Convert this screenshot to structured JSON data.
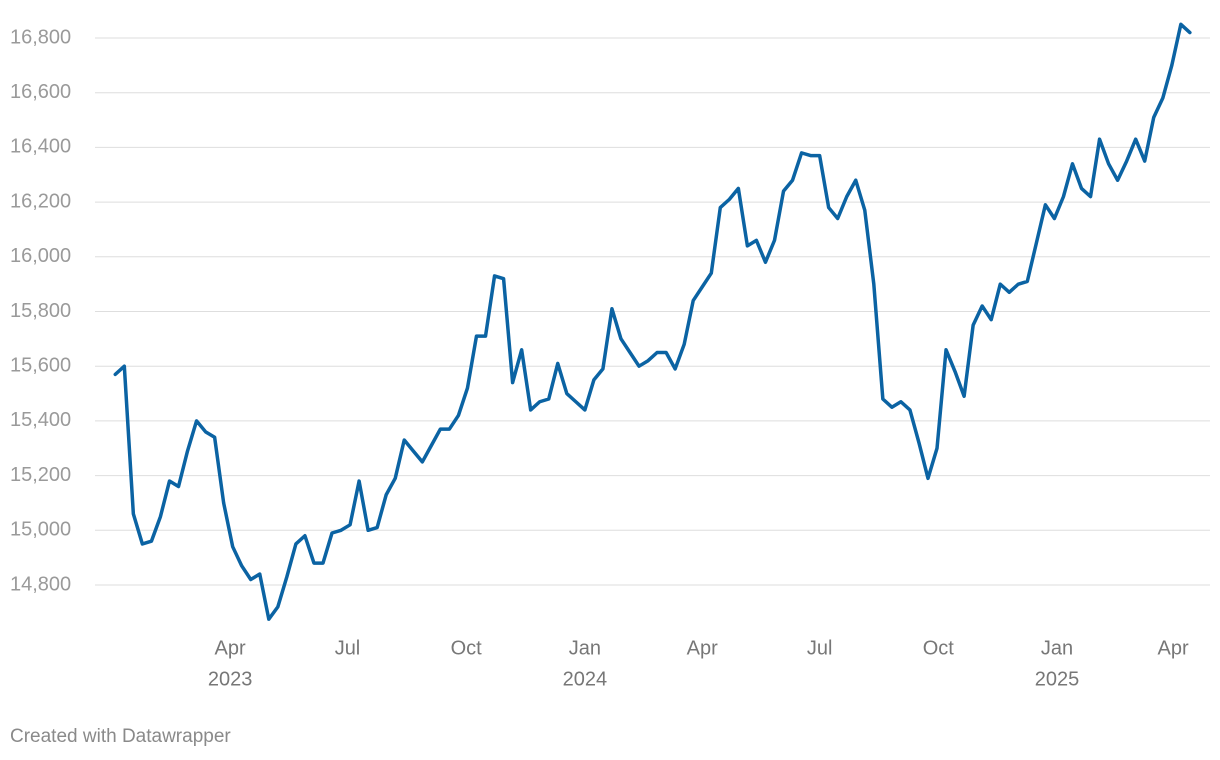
{
  "chart_data": {
    "type": "line",
    "x": [
      "2023-01-02",
      "2023-01-09",
      "2023-01-16",
      "2023-01-23",
      "2023-01-30",
      "2023-02-06",
      "2023-02-13",
      "2023-02-20",
      "2023-02-27",
      "2023-03-06",
      "2023-03-13",
      "2023-03-20",
      "2023-03-27",
      "2023-04-03",
      "2023-04-10",
      "2023-04-17",
      "2023-04-24",
      "2023-05-01",
      "2023-05-08",
      "2023-05-15",
      "2023-05-22",
      "2023-05-29",
      "2023-06-05",
      "2023-06-12",
      "2023-06-19",
      "2023-06-26",
      "2023-07-03",
      "2023-07-10",
      "2023-07-17",
      "2023-07-24",
      "2023-07-31",
      "2023-08-07",
      "2023-08-14",
      "2023-08-21",
      "2023-08-28",
      "2023-09-04",
      "2023-09-11",
      "2023-09-18",
      "2023-09-25",
      "2023-10-02",
      "2023-10-09",
      "2023-10-16",
      "2023-10-23",
      "2023-10-30",
      "2023-11-06",
      "2023-11-13",
      "2023-11-20",
      "2023-11-27",
      "2023-12-04",
      "2023-12-11",
      "2023-12-18",
      "2023-12-25",
      "2024-01-01",
      "2024-01-08",
      "2024-01-15",
      "2024-01-22",
      "2024-01-29",
      "2024-02-05",
      "2024-02-12",
      "2024-02-19",
      "2024-02-26",
      "2024-03-04",
      "2024-03-11",
      "2024-03-18",
      "2024-03-25",
      "2024-04-01",
      "2024-04-08",
      "2024-04-15",
      "2024-04-22",
      "2024-04-29",
      "2024-05-06",
      "2024-05-13",
      "2024-05-20",
      "2024-05-27",
      "2024-06-03",
      "2024-06-10",
      "2024-06-17",
      "2024-06-24",
      "2024-07-01",
      "2024-07-08",
      "2024-07-15",
      "2024-07-22",
      "2024-07-29",
      "2024-08-05",
      "2024-08-12",
      "2024-08-19",
      "2024-08-26",
      "2024-09-02",
      "2024-09-09",
      "2024-09-16",
      "2024-09-23",
      "2024-09-30",
      "2024-10-07",
      "2024-10-14",
      "2024-10-21",
      "2024-10-28",
      "2024-11-04",
      "2024-11-11",
      "2024-11-18",
      "2024-11-25",
      "2024-12-02",
      "2024-12-09",
      "2024-12-16",
      "2024-12-23",
      "2024-12-30",
      "2025-01-06",
      "2025-01-13",
      "2025-01-20",
      "2025-01-27",
      "2025-02-03",
      "2025-02-10",
      "2025-02-17",
      "2025-02-24",
      "2025-03-03",
      "2025-03-10",
      "2025-03-17",
      "2025-03-24",
      "2025-03-31",
      "2025-04-07",
      "2025-04-14"
    ],
    "values": [
      15570,
      15600,
      15060,
      14950,
      14960,
      15050,
      15180,
      15160,
      15290,
      15400,
      15360,
      15340,
      15100,
      14940,
      14870,
      14820,
      14840,
      14675,
      14720,
      14830,
      14950,
      14980,
      14880,
      14880,
      14990,
      15000,
      15020,
      15180,
      15000,
      15010,
      15130,
      15190,
      15330,
      15290,
      15250,
      15310,
      15370,
      15370,
      15420,
      15520,
      15710,
      15710,
      15930,
      15920,
      15540,
      15660,
      15440,
      15470,
      15480,
      15610,
      15500,
      15470,
      15440,
      15550,
      15590,
      15810,
      15700,
      15650,
      15600,
      15620,
      15650,
      15650,
      15590,
      15680,
      15840,
      15890,
      15940,
      16180,
      16210,
      16250,
      16040,
      16060,
      15980,
      16060,
      16240,
      16280,
      16380,
      16370,
      16370,
      16180,
      16140,
      16220,
      16280,
      16170,
      15900,
      15480,
      15450,
      15470,
      15440,
      15320,
      15190,
      15300,
      15660,
      15580,
      15490,
      15750,
      15820,
      15770,
      15900,
      15870,
      15900,
      15910,
      16050,
      16190,
      16140,
      16220,
      16340,
      16250,
      16220,
      16430,
      16340,
      16280,
      16350,
      16430,
      16350,
      16510,
      16580,
      16700,
      16850,
      16820
    ],
    "color": "#0b63a3",
    "xlim": [
      "2023-01-01",
      "2025-04-20"
    ],
    "xticks": [
      {
        "value": "2023-04",
        "label": "Apr",
        "year": "2023"
      },
      {
        "value": "2023-07",
        "label": "Jul"
      },
      {
        "value": "2023-10",
        "label": "Oct"
      },
      {
        "value": "2024-01",
        "label": "Jan",
        "year": "2024"
      },
      {
        "value": "2024-04",
        "label": "Apr"
      },
      {
        "value": "2024-07",
        "label": "Jul"
      },
      {
        "value": "2024-10",
        "label": "Oct"
      },
      {
        "value": "2025-01",
        "label": "Jan",
        "year": "2025"
      },
      {
        "value": "2025-04",
        "label": "Apr"
      }
    ],
    "ylim": [
      14650,
      16830
    ],
    "yticks": [
      {
        "value": 14800,
        "label": "14,800"
      },
      {
        "value": 15000,
        "label": "15,000"
      },
      {
        "value": 15200,
        "label": "15,200"
      },
      {
        "value": 15400,
        "label": "15,400"
      },
      {
        "value": 15600,
        "label": "15,600"
      },
      {
        "value": 15800,
        "label": "15,800"
      },
      {
        "value": 16000,
        "label": "16,000"
      },
      {
        "value": 16200,
        "label": "16,200"
      },
      {
        "value": 16400,
        "label": "16,400"
      },
      {
        "value": 16600,
        "label": "16,600"
      },
      {
        "value": 16800,
        "label": "16,800"
      }
    ],
    "grid": true,
    "footer": "Created with Datawrapper"
  }
}
